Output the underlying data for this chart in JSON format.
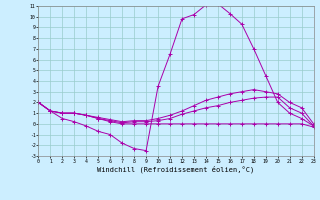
{
  "xlabel": "Windchill (Refroidissement éolien,°C)",
  "background_color": "#cceeff",
  "line_color": "#aa00aa",
  "grid_color": "#99cccc",
  "xmin": 0,
  "xmax": 23,
  "ymin": -3,
  "ymax": 11,
  "series": [
    {
      "x": [
        0,
        1,
        2,
        3,
        4,
        5,
        6,
        7,
        8,
        9,
        10,
        11,
        12,
        13,
        14,
        15,
        16,
        17,
        18,
        19,
        20,
        21,
        22,
        23
      ],
      "y": [
        2,
        1.2,
        0.5,
        0.2,
        -0.2,
        -0.7,
        -1.0,
        -1.8,
        -2.3,
        -2.5,
        3.5,
        6.5,
        9.8,
        10.2,
        11.1,
        11.2,
        10.3,
        9.3,
        7.0,
        4.5,
        2.0,
        1.0,
        0.5,
        -0.2
      ]
    },
    {
      "x": [
        0,
        1,
        2,
        3,
        4,
        5,
        6,
        7,
        8,
        9,
        10,
        11,
        12,
        13,
        14,
        15,
        16,
        17,
        18,
        19,
        20,
        21,
        22,
        23
      ],
      "y": [
        2,
        1.2,
        1.0,
        1.0,
        0.8,
        0.6,
        0.4,
        0.2,
        0.3,
        0.3,
        0.5,
        0.8,
        1.2,
        1.7,
        2.2,
        2.5,
        2.8,
        3.0,
        3.2,
        3.0,
        2.8,
        2.0,
        1.5,
        0.0
      ]
    },
    {
      "x": [
        0,
        1,
        2,
        3,
        4,
        5,
        6,
        7,
        8,
        9,
        10,
        11,
        12,
        13,
        14,
        15,
        16,
        17,
        18,
        19,
        20,
        21,
        22,
        23
      ],
      "y": [
        2,
        1.2,
        1.0,
        1.0,
        0.8,
        0.5,
        0.3,
        0.1,
        0.2,
        0.2,
        0.3,
        0.5,
        0.9,
        1.2,
        1.5,
        1.7,
        2.0,
        2.2,
        2.4,
        2.5,
        2.5,
        1.5,
        1.0,
        -0.2
      ]
    },
    {
      "x": [
        0,
        1,
        2,
        3,
        4,
        5,
        6,
        7,
        8,
        9,
        10,
        11,
        12,
        13,
        14,
        15,
        16,
        17,
        18,
        19,
        20,
        21,
        22,
        23
      ],
      "y": [
        2,
        1.2,
        1.0,
        1.0,
        0.8,
        0.5,
        0.2,
        0.0,
        0.0,
        0.0,
        0.0,
        0.0,
        0.0,
        0.0,
        0.0,
        0.0,
        0.0,
        0.0,
        0.0,
        0.0,
        0.0,
        0.0,
        0.0,
        -0.3
      ]
    }
  ]
}
